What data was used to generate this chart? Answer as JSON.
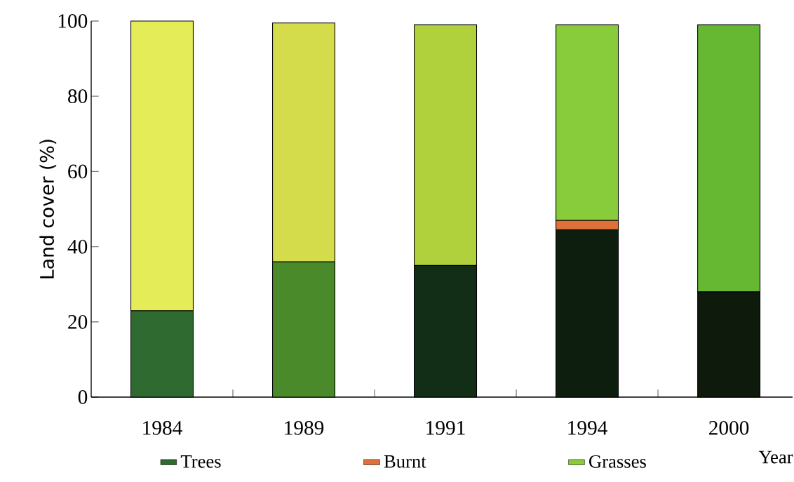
{
  "chart_data": {
    "type": "bar",
    "stacked": true,
    "xlabel": "Year",
    "ylabel": "Land cover (%)",
    "categories": [
      "1984",
      "1989",
      "1991",
      "1994",
      "2000"
    ],
    "ylim": [
      0,
      100
    ],
    "yticks": [
      0,
      20,
      40,
      60,
      80,
      100
    ],
    "legend": "bottom",
    "series": [
      {
        "name": "Trees",
        "color": "#2f6a30",
        "colors": [
          "#2f6a30",
          "#4a8a2a",
          "#122e16",
          "#0e1e0e",
          "#0e1a0c"
        ],
        "values": [
          23,
          36,
          35,
          44.5,
          28
        ]
      },
      {
        "name": "Burnt",
        "color": "#e0703a",
        "colors": [
          null,
          null,
          null,
          "#e0703a",
          null
        ],
        "values": [
          null,
          null,
          null,
          2.5,
          null
        ]
      },
      {
        "name": "Grasses",
        "color": "#88cc3c",
        "colors": [
          "#e4ec58",
          "#d4dc4c",
          "#b0d03c",
          "#88cc3c",
          "#66b832"
        ],
        "values": [
          77,
          63.5,
          64,
          52,
          71
        ]
      }
    ]
  }
}
